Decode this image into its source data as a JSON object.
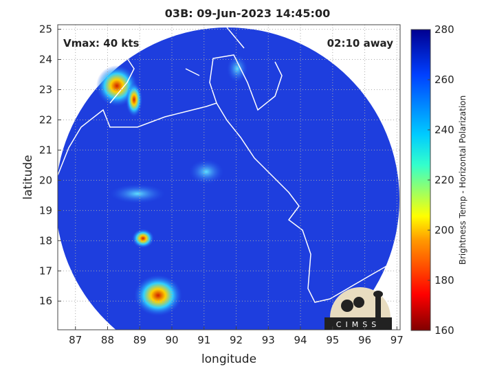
{
  "title": "03B: 09-Jun-2023 14:45:00",
  "annotations": {
    "vmax": "Vmax: 40 kts",
    "time_away": "02:10 away"
  },
  "x_axis": {
    "label": "longitude",
    "lim": [
      86.45,
      97.1
    ],
    "ticks": [
      87,
      88,
      89,
      90,
      91,
      92,
      93,
      94,
      95,
      96,
      97
    ]
  },
  "y_axis": {
    "label": "latitude",
    "lim": [
      15.05,
      25.15
    ],
    "ticks": [
      16,
      17,
      18,
      19,
      20,
      21,
      22,
      23,
      24,
      25
    ]
  },
  "colorbar": {
    "label": "Brightness Temp - Horizontal Polarization",
    "lim": [
      160,
      280
    ],
    "ticks": [
      160,
      180,
      200,
      220,
      240,
      260,
      280
    ]
  },
  "logo": "CIMSS"
}
